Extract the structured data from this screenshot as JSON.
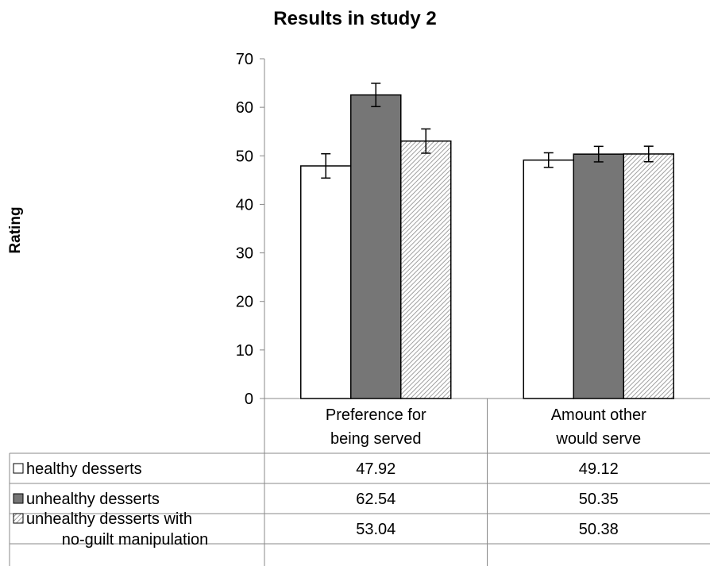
{
  "chart_data": {
    "type": "bar",
    "title": "Results in study 2",
    "xlabel": "",
    "ylabel": "Rating",
    "ylim": [
      0,
      70
    ],
    "yticks": [
      0,
      10,
      20,
      30,
      40,
      50,
      60,
      70
    ],
    "grid": false,
    "legend": "data-table-below",
    "categories": [
      "Preference for being served",
      "Amount other would serve"
    ],
    "category_lines": [
      [
        "Preference for",
        "being served"
      ],
      [
        "Amount other",
        "would serve"
      ]
    ],
    "series": [
      {
        "name": "healthy desserts",
        "name_lines": [
          "healthy desserts"
        ],
        "values": [
          47.92,
          49.12
        ],
        "value_labels": [
          "47.92",
          "49.12"
        ],
        "error": [
          2.5,
          1.5
        ],
        "fill": "#ffffff",
        "pattern": "solid"
      },
      {
        "name": "unhealthy desserts",
        "name_lines": [
          "unhealthy desserts"
        ],
        "values": [
          62.54,
          50.35
        ],
        "value_labels": [
          "62.54",
          "50.35"
        ],
        "error": [
          2.4,
          1.6
        ],
        "fill": "#767676",
        "pattern": "solid"
      },
      {
        "name": "unhealthy desserts with no-guilt manipulation",
        "name_lines": [
          "unhealthy desserts with",
          "no-guilt manipulation"
        ],
        "values": [
          53.04,
          50.38
        ],
        "value_labels": [
          "53.04",
          "50.38"
        ],
        "error": [
          2.5,
          1.6
        ],
        "fill": "#ffffff",
        "pattern": "diagonal-hatch"
      }
    ],
    "colors": {
      "axis": "#888888",
      "bar_stroke": "#000000",
      "hatch": "#888888"
    }
  }
}
